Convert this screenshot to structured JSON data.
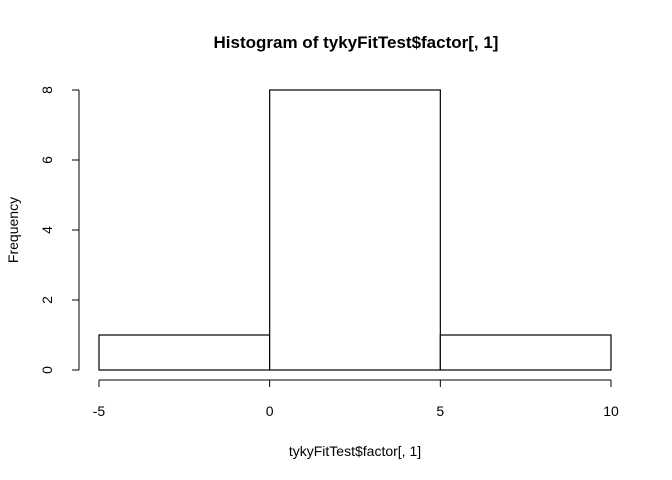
{
  "chart_data": {
    "type": "bar",
    "title": "Histogram of tykyFitTest$factor[, 1]",
    "xlabel": "tykyFitTest$factor[, 1]",
    "ylabel": "Frequency",
    "bins": [
      {
        "x0": -5,
        "x1": 0,
        "count": 1
      },
      {
        "x0": 0,
        "x1": 5,
        "count": 8
      },
      {
        "x0": 5,
        "x1": 10,
        "count": 1
      }
    ],
    "xlim": [
      -5,
      10
    ],
    "ylim": [
      0,
      8
    ],
    "xticks": [
      -5,
      0,
      5,
      10
    ],
    "yticks": [
      0,
      2,
      4,
      6,
      8
    ],
    "grid": false,
    "colors": {
      "bar_fill": "#ffffff",
      "bar_stroke": "#000000"
    }
  }
}
